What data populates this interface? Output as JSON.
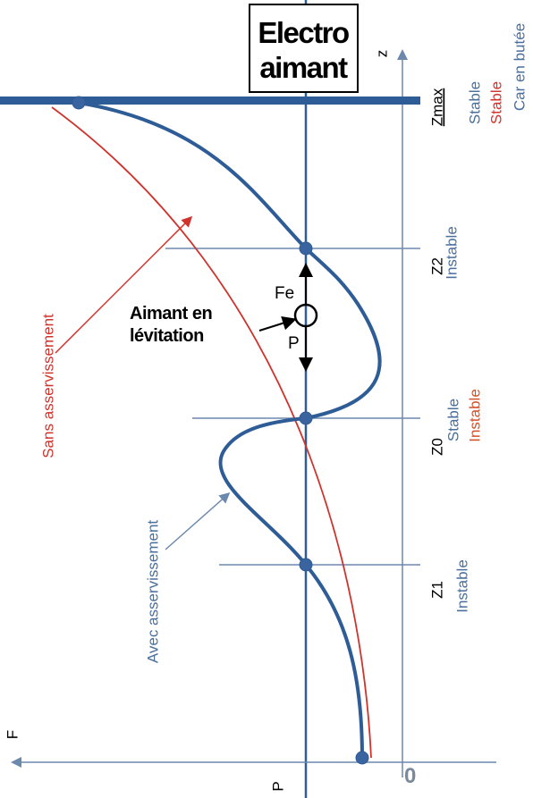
{
  "electromagnet": {
    "lines": [
      "Electro",
      "aimant"
    ]
  },
  "axes": {
    "z": "z",
    "f": "F",
    "p": "P",
    "origin": "0"
  },
  "positions": [
    {
      "label": "Zmax",
      "states": [
        "Stable",
        "Stable",
        "Car en butée"
      ]
    },
    {
      "label": "Z2",
      "states": [
        "Instable"
      ]
    },
    {
      "label": "Z0",
      "states": [
        "Stable",
        "Instable"
      ]
    },
    {
      "label": "Z1",
      "states": [
        "Instable"
      ]
    }
  ],
  "curves": {
    "with": "Avec asservissement",
    "without": "Sans asservissement"
  },
  "magnet": {
    "label": [
      "Aimant en",
      "lévitation"
    ],
    "force_up": "Fe",
    "force_down": "P"
  }
}
